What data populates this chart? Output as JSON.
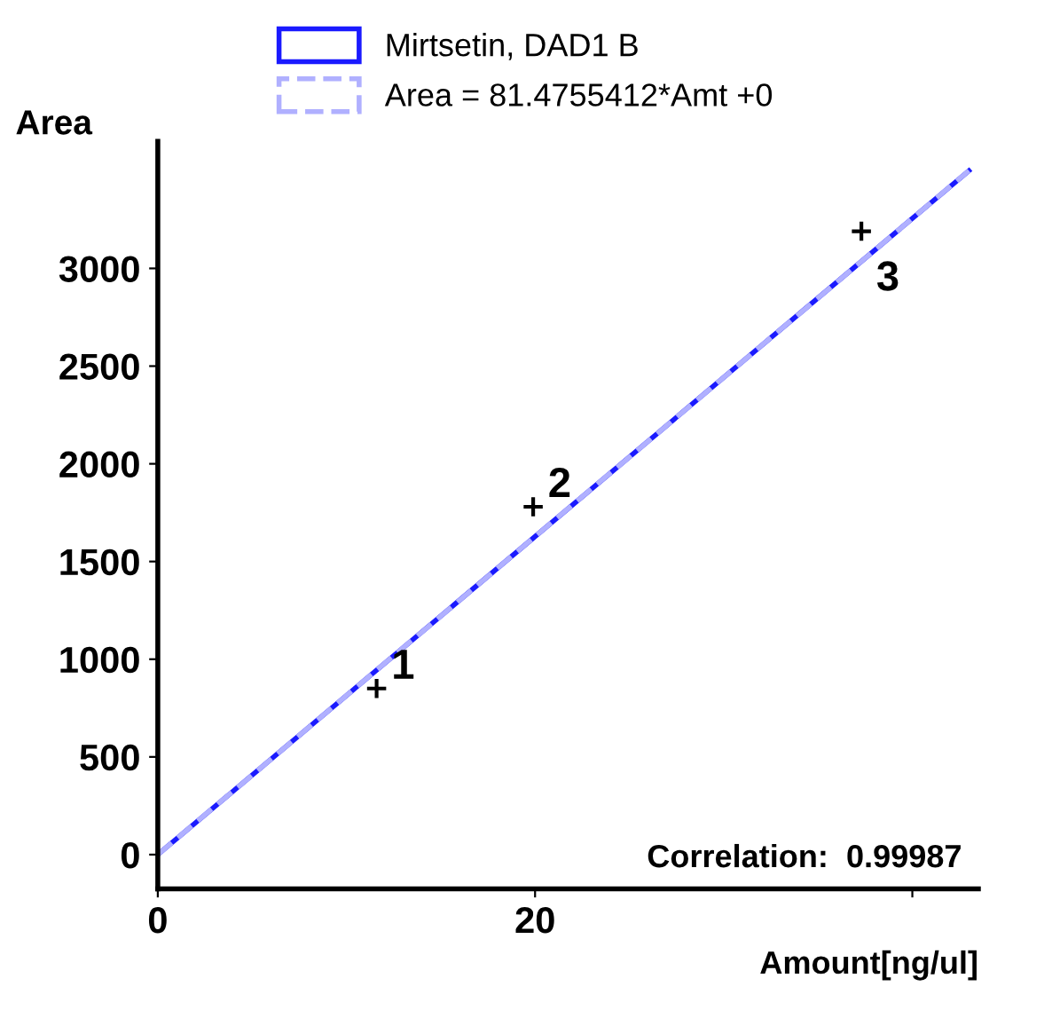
{
  "chart_data": {
    "type": "line",
    "xlabel": "Amount[ng/ul]",
    "ylabel": "Area",
    "xlim": [
      0,
      43.5
    ],
    "ylim": [
      -175,
      3650
    ],
    "xticks": [
      0,
      20,
      {
        "value": 40,
        "label": null
      }
    ],
    "yticks": [
      0,
      500,
      1000,
      1500,
      2000,
      2500,
      3000
    ],
    "grid": false,
    "legend": "top",
    "series": [
      {
        "name": "Mirtsetin, DAD1 B",
        "color": "#1a1aff",
        "line_style": "solid",
        "marker": "none",
        "x": [
          0,
          43
        ],
        "values": [
          0,
          3500
        ]
      },
      {
        "name": "Area = 81.4755412*Amt +0",
        "color": "#b0b0ff",
        "line_style": "dashed",
        "marker": "none",
        "x": [
          0,
          43
        ],
        "values": [
          0,
          3500
        ]
      },
      {
        "type": "scatter",
        "color": "#000000",
        "marker": "cross",
        "x": [
          11.6,
          19.9,
          37.3
        ],
        "values": [
          850,
          1780,
          3190
        ]
      }
    ],
    "annotations": [
      {
        "text": "1",
        "x": 11.6,
        "y": 850
      },
      {
        "text": "2",
        "x": 19.9,
        "y": 1780
      },
      {
        "text": "3",
        "x": 37.3,
        "y": 3190
      },
      "Correlation:  0.99987"
    ]
  }
}
